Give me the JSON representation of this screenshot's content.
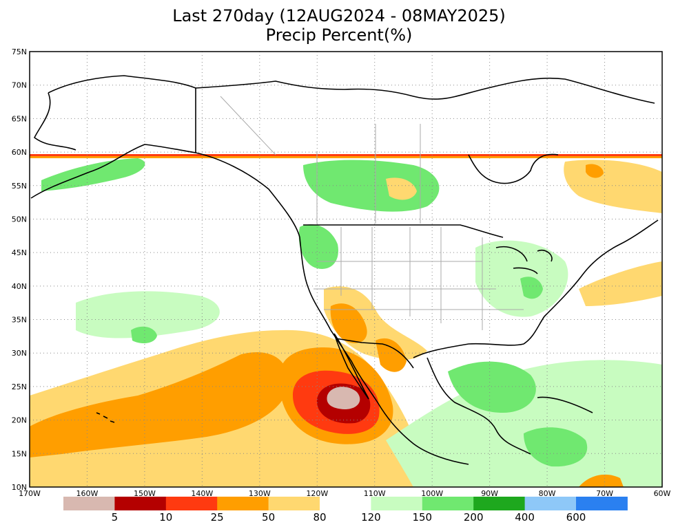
{
  "title_line1": "Last 270day (12AUG2024 - 08MAY2025)",
  "title_line2": "Precip Percent(%)",
  "map": {
    "lat_range": [
      10,
      75
    ],
    "lon_range": [
      -170,
      -60
    ],
    "lat_labels": [
      "75N",
      "70N",
      "65N",
      "60N",
      "55N",
      "50N",
      "45N",
      "40N",
      "35N",
      "30N",
      "25N",
      "20N",
      "15N",
      "10N"
    ],
    "lon_labels": [
      "170W",
      "160W",
      "150W",
      "140W",
      "130W",
      "120W",
      "110W",
      "100W",
      "90W",
      "80W",
      "70W",
      "60W"
    ],
    "no_data_north_of": "60N"
  },
  "colorbar": {
    "colors": [
      "#d8b8b0",
      "#b40000",
      "#ff3a10",
      "#ff9e00",
      "#ffd870",
      "#ffffff",
      "#c8fcc0",
      "#70e870",
      "#1ea81e",
      "#8ec8f8",
      "#2a80f0"
    ],
    "labels": [
      "5",
      "10",
      "25",
      "50",
      "80",
      "120",
      "150",
      "200",
      "400",
      "600"
    ]
  }
}
